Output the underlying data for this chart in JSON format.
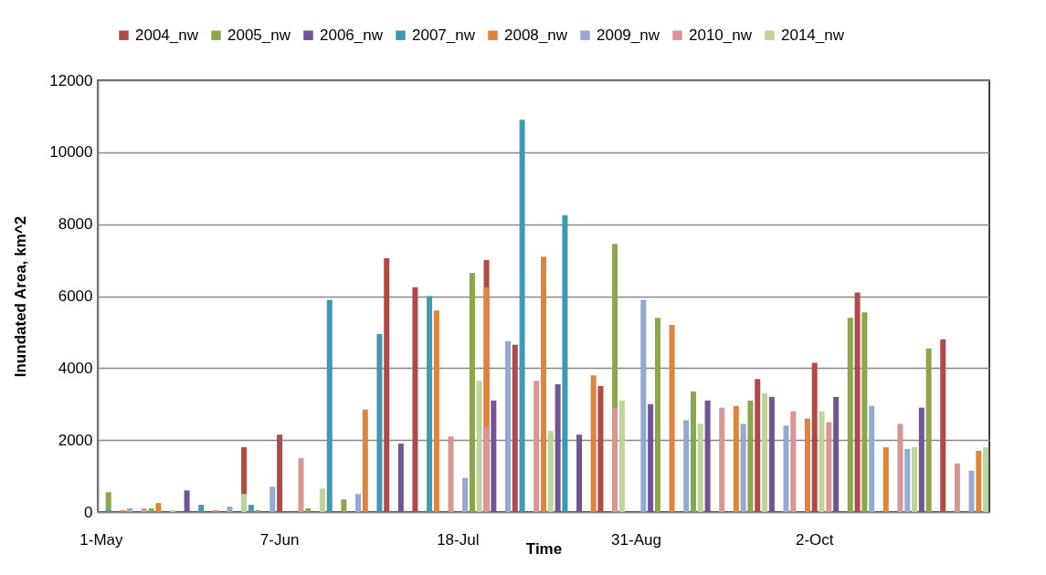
{
  "chart_data": {
    "type": "bar",
    "xlabel": "Time",
    "ylabel": "Inundated Area, km^2",
    "categories": [
      "1-May",
      null,
      null,
      null,
      null,
      null,
      null,
      null,
      null,
      null,
      null,
      null,
      null,
      null,
      null,
      null,
      null,
      null,
      null,
      null,
      null,
      null,
      null,
      null,
      null,
      "7-Jun",
      null,
      null,
      null,
      null,
      null,
      null,
      null,
      null,
      null,
      null,
      null,
      null,
      null,
      null,
      null,
      null,
      null,
      null,
      null,
      null,
      null,
      null,
      null,
      null,
      "18-Jul",
      null,
      null,
      null,
      null,
      null,
      null,
      null,
      null,
      null,
      null,
      null,
      null,
      null,
      null,
      null,
      null,
      null,
      null,
      null,
      null,
      null,
      null,
      null,
      null,
      "31-Aug",
      null,
      null,
      null,
      null,
      null,
      null,
      null,
      null,
      null,
      null,
      null,
      null,
      null,
      null,
      null,
      null,
      null,
      null,
      null,
      null,
      null,
      null,
      null,
      null,
      "2-Oct",
      null,
      null,
      null,
      null,
      null,
      null,
      null,
      null,
      null,
      null,
      null,
      null,
      null,
      null,
      null,
      null,
      null,
      null,
      null,
      null,
      null,
      null,
      null,
      null
    ],
    "ylim": [
      0,
      12000
    ],
    "yticks": [
      0,
      2000,
      4000,
      6000,
      8000,
      10000,
      12000
    ],
    "grid": "y",
    "legend": "top",
    "series": [
      {
        "name": "2004_nw",
        "color": "#b04a48",
        "values": [
          null,
          null,
          null,
          null,
          null,
          null,
          null,
          null,
          null,
          null,
          null,
          null,
          null,
          null,
          null,
          null,
          null,
          null,
          null,
          null,
          1800,
          null,
          null,
          null,
          null,
          2150,
          null,
          null,
          null,
          null,
          null,
          null,
          null,
          null,
          null,
          null,
          null,
          null,
          null,
          null,
          7050,
          null,
          null,
          null,
          6250,
          null,
          null,
          null,
          null,
          null,
          null,
          null,
          null,
          null,
          7000,
          null,
          null,
          null,
          4650,
          null,
          null,
          null,
          null,
          null,
          null,
          null,
          null,
          null,
          null,
          null,
          3500,
          null,
          null,
          null,
          null,
          null,
          null,
          null,
          null,
          null,
          null,
          null,
          null,
          null,
          null,
          null,
          null,
          null,
          null,
          null,
          null,
          null,
          3700,
          null,
          null,
          null,
          null,
          null,
          null,
          null,
          4150,
          null,
          null,
          null,
          null,
          null,
          6100,
          null,
          null,
          null,
          null,
          null,
          null,
          null,
          null,
          null,
          null,
          null,
          4800,
          null,
          null,
          null,
          null,
          null,
          null
        ]
      },
      {
        "name": "2005_nw",
        "color": "#8ba64b",
        "values": [
          null,
          550,
          null,
          null,
          null,
          null,
          null,
          100,
          null,
          null,
          null,
          null,
          null,
          null,
          null,
          null,
          null,
          null,
          null,
          null,
          null,
          null,
          50,
          null,
          null,
          null,
          null,
          null,
          null,
          100,
          null,
          null,
          null,
          null,
          350,
          null,
          null,
          null,
          null,
          null,
          null,
          null,
          null,
          null,
          null,
          null,
          null,
          null,
          null,
          null,
          null,
          null,
          6650,
          null,
          null,
          null,
          null,
          null,
          null,
          null,
          null,
          null,
          null,
          null,
          null,
          null,
          null,
          null,
          null,
          null,
          null,
          null,
          7450,
          null,
          null,
          null,
          null,
          null,
          5400,
          null,
          null,
          null,
          null,
          3350,
          null,
          null,
          null,
          null,
          null,
          null,
          null,
          3100,
          null,
          null,
          null,
          null,
          null,
          null,
          null,
          null,
          null,
          null,
          null,
          null,
          null,
          5400,
          null,
          5550,
          null,
          null,
          null,
          null,
          null,
          null,
          null,
          null,
          4550,
          null,
          null,
          null,
          null,
          null,
          null,
          null,
          null
        ]
      },
      {
        "name": "2006_nw",
        "color": "#6f5496",
        "values": [
          null,
          null,
          null,
          null,
          null,
          null,
          null,
          null,
          null,
          null,
          null,
          null,
          600,
          null,
          null,
          null,
          null,
          null,
          null,
          null,
          null,
          null,
          null,
          null,
          null,
          null,
          null,
          null,
          null,
          null,
          null,
          null,
          null,
          null,
          null,
          null,
          null,
          null,
          null,
          null,
          null,
          null,
          1900,
          null,
          null,
          null,
          null,
          null,
          null,
          null,
          null,
          null,
          null,
          null,
          null,
          3100,
          null,
          null,
          null,
          null,
          null,
          null,
          null,
          null,
          3550,
          null,
          null,
          2150,
          null,
          null,
          null,
          null,
          null,
          null,
          null,
          null,
          null,
          3000,
          null,
          null,
          null,
          null,
          null,
          null,
          null,
          3100,
          null,
          null,
          null,
          null,
          null,
          null,
          null,
          null,
          3200,
          null,
          null,
          null,
          null,
          null,
          null,
          null,
          null,
          3200,
          null,
          null,
          null,
          null,
          null,
          null,
          null,
          null,
          null,
          null,
          null,
          2900,
          null,
          null,
          null,
          null,
          null,
          null,
          null,
          null,
          null
        ]
      },
      {
        "name": "2007_nw",
        "color": "#3f9ab1",
        "values": [
          null,
          50,
          null,
          null,
          null,
          null,
          null,
          null,
          null,
          null,
          null,
          null,
          null,
          null,
          200,
          null,
          null,
          null,
          null,
          null,
          null,
          200,
          null,
          null,
          null,
          null,
          null,
          null,
          null,
          null,
          null,
          null,
          5900,
          null,
          null,
          null,
          null,
          null,
          null,
          4950,
          null,
          null,
          null,
          null,
          null,
          null,
          6000,
          null,
          null,
          null,
          null,
          null,
          null,
          null,
          null,
          null,
          null,
          null,
          null,
          10900,
          null,
          null,
          null,
          null,
          null,
          8250,
          null,
          null,
          null,
          null,
          null,
          null,
          null,
          null,
          null,
          null,
          null,
          null,
          null,
          null,
          null,
          null,
          null,
          null,
          null,
          null,
          null,
          null,
          null,
          null,
          null,
          null,
          null,
          null,
          null,
          null,
          null,
          null,
          null,
          null,
          null,
          null,
          null,
          null,
          null,
          null,
          null,
          null,
          null,
          null,
          null,
          null,
          null,
          null,
          null,
          null,
          null,
          null,
          null,
          null,
          null,
          null,
          null,
          null,
          null
        ]
      },
      {
        "name": "2008_nw",
        "color": "#e0843b",
        "values": [
          null,
          null,
          null,
          50,
          null,
          null,
          null,
          null,
          250,
          null,
          null,
          null,
          null,
          null,
          null,
          null,
          50,
          null,
          null,
          null,
          null,
          null,
          null,
          null,
          null,
          null,
          null,
          null,
          null,
          null,
          null,
          null,
          null,
          null,
          null,
          null,
          null,
          2850,
          null,
          null,
          null,
          null,
          null,
          null,
          null,
          null,
          null,
          5600,
          null,
          null,
          null,
          null,
          null,
          null,
          6250,
          null,
          null,
          null,
          null,
          null,
          null,
          null,
          7100,
          null,
          null,
          null,
          null,
          null,
          null,
          3800,
          null,
          null,
          null,
          null,
          null,
          null,
          null,
          null,
          null,
          null,
          5200,
          null,
          null,
          null,
          null,
          null,
          null,
          null,
          null,
          2950,
          null,
          null,
          null,
          null,
          null,
          null,
          null,
          null,
          null,
          2600,
          null,
          null,
          null,
          null,
          null,
          null,
          null,
          null,
          null,
          null,
          1800,
          null,
          null,
          null,
          null,
          null,
          null,
          null,
          null,
          null,
          null,
          null,
          null,
          1700,
          null
        ]
      },
      {
        "name": "2009_nw",
        "color": "#93a9d4",
        "values": [
          null,
          null,
          null,
          null,
          100,
          null,
          null,
          null,
          null,
          null,
          null,
          null,
          null,
          null,
          null,
          null,
          null,
          null,
          150,
          null,
          null,
          null,
          null,
          null,
          700,
          null,
          null,
          null,
          null,
          null,
          null,
          null,
          null,
          null,
          null,
          null,
          500,
          null,
          null,
          null,
          null,
          null,
          null,
          null,
          null,
          null,
          null,
          null,
          null,
          null,
          null,
          950,
          null,
          null,
          null,
          null,
          null,
          4750,
          null,
          null,
          null,
          null,
          null,
          null,
          null,
          null,
          null,
          null,
          null,
          null,
          null,
          null,
          null,
          null,
          null,
          null,
          5900,
          null,
          null,
          null,
          null,
          null,
          2550,
          null,
          null,
          null,
          null,
          null,
          null,
          null,
          2450,
          null,
          null,
          null,
          null,
          null,
          2400,
          null,
          null,
          null,
          null,
          null,
          null,
          null,
          null,
          null,
          null,
          null,
          2950,
          null,
          null,
          null,
          null,
          1750,
          null,
          null,
          null,
          null,
          null,
          null,
          null,
          null,
          1150,
          null,
          null
        ]
      },
      {
        "name": "2010_nw",
        "color": "#d99594",
        "values": [
          null,
          null,
          null,
          null,
          null,
          null,
          100,
          null,
          null,
          null,
          null,
          null,
          null,
          null,
          null,
          null,
          null,
          null,
          null,
          null,
          null,
          null,
          null,
          null,
          null,
          null,
          null,
          null,
          1500,
          null,
          null,
          null,
          null,
          null,
          null,
          null,
          null,
          null,
          null,
          null,
          null,
          null,
          null,
          null,
          null,
          null,
          null,
          null,
          null,
          2100,
          null,
          null,
          null,
          null,
          2350,
          null,
          null,
          null,
          null,
          null,
          null,
          3650,
          null,
          null,
          null,
          null,
          null,
          null,
          null,
          null,
          null,
          null,
          2900,
          null,
          null,
          null,
          null,
          null,
          null,
          null,
          null,
          null,
          null,
          null,
          null,
          null,
          null,
          2900,
          null,
          null,
          null,
          null,
          null,
          null,
          null,
          null,
          null,
          2800,
          null,
          null,
          null,
          null,
          2500,
          null,
          null,
          null,
          null,
          null,
          null,
          null,
          null,
          null,
          2450,
          null,
          null,
          null,
          null,
          null,
          null,
          null,
          1350,
          null,
          null,
          null,
          null
        ]
      },
      {
        "name": "2014_nw",
        "color": "#bdd49a",
        "values": [
          null,
          null,
          null,
          null,
          null,
          null,
          null,
          null,
          null,
          null,
          50,
          null,
          null,
          null,
          null,
          null,
          null,
          null,
          null,
          null,
          500,
          null,
          null,
          null,
          null,
          null,
          null,
          null,
          null,
          null,
          null,
          650,
          null,
          null,
          null,
          null,
          null,
          null,
          null,
          null,
          null,
          null,
          null,
          null,
          null,
          null,
          null,
          null,
          null,
          null,
          null,
          null,
          null,
          3650,
          null,
          null,
          null,
          null,
          null,
          null,
          null,
          null,
          null,
          2250,
          null,
          null,
          null,
          null,
          null,
          null,
          null,
          null,
          null,
          3100,
          null,
          null,
          null,
          null,
          null,
          null,
          null,
          null,
          null,
          null,
          2450,
          null,
          null,
          null,
          null,
          null,
          null,
          null,
          null,
          3300,
          null,
          null,
          null,
          null,
          null,
          null,
          null,
          2800,
          null,
          null,
          null,
          null,
          null,
          null,
          null,
          null,
          null,
          null,
          null,
          null,
          1800,
          null,
          null,
          null,
          null,
          null,
          null,
          null,
          null,
          null,
          1800
        ]
      }
    ]
  }
}
